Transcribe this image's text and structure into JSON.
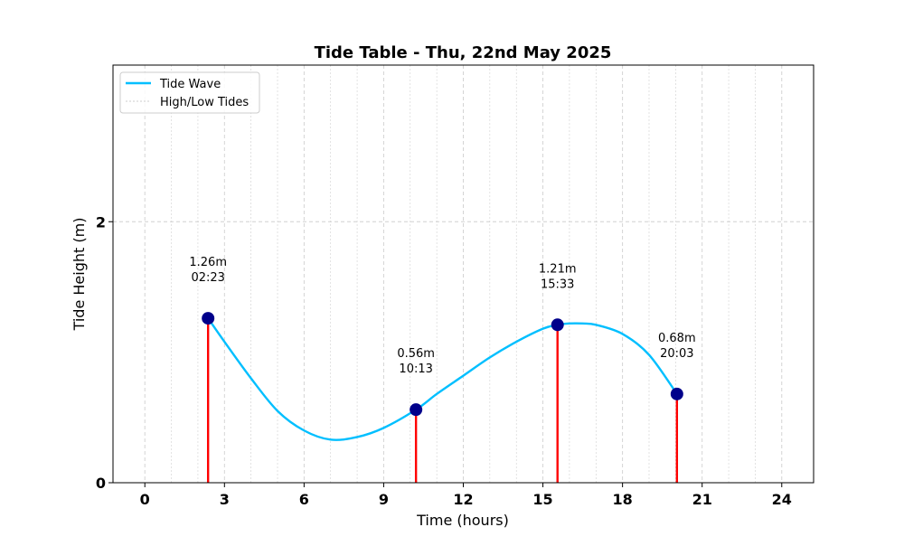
{
  "chart_data": {
    "type": "line",
    "title": "Tide Table - Thu, 22nd May 2025",
    "xlabel": "Time (hours)",
    "ylabel": "Tide Height (m)",
    "xlim": [
      -1.2,
      25.2
    ],
    "ylim": [
      0,
      3.2
    ],
    "xticks": [
      0,
      3,
      6,
      9,
      12,
      15,
      18,
      21,
      24
    ],
    "yticks": [
      0,
      2
    ],
    "grid": true,
    "legend_position": "top-left",
    "legend": [
      {
        "label": "Tide Wave",
        "style": "line",
        "color": "#00BFFF"
      },
      {
        "label": "High/Low Tides",
        "style": "dotted",
        "color": "#cccccc"
      }
    ],
    "colors": {
      "wave": "#00BFFF",
      "marker": "#00008B",
      "stem": "#FF0000",
      "grid": "#d0d0d0"
    },
    "series": [
      {
        "name": "Tide Wave",
        "x": [
          2.383,
          3.0,
          4.0,
          5.0,
          6.0,
          7.0,
          8.0,
          9.0,
          10.217,
          11.0,
          12.0,
          13.0,
          14.0,
          15.0,
          15.55,
          16.0,
          16.5,
          17.0,
          18.0,
          19.0,
          20.05
        ],
        "y": [
          1.26,
          1.08,
          0.8,
          0.55,
          0.4,
          0.33,
          0.35,
          0.42,
          0.56,
          0.68,
          0.82,
          0.96,
          1.08,
          1.18,
          1.21,
          1.22,
          1.22,
          1.21,
          1.14,
          0.98,
          0.68
        ]
      }
    ],
    "tides": [
      {
        "x": 2.383,
        "y": 1.26,
        "height_label": "1.26m",
        "time_label": "02:23"
      },
      {
        "x": 10.217,
        "y": 0.56,
        "height_label": "0.56m",
        "time_label": "10:13"
      },
      {
        "x": 15.55,
        "y": 1.21,
        "height_label": "1.21m",
        "time_label": "15:33"
      },
      {
        "x": 20.05,
        "y": 0.68,
        "height_label": "0.68m",
        "time_label": "20:03"
      }
    ]
  }
}
